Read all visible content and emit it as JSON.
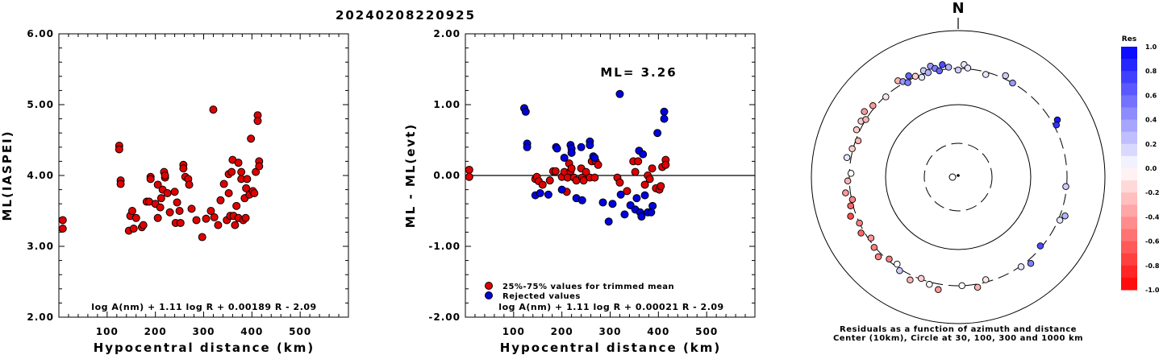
{
  "page_title": "20240208220925",
  "chart_data": [
    {
      "type": "scatter",
      "id": "left",
      "ylabel": "ML(IASPEI)",
      "xlabel": "Hypocentral distance (km)",
      "xlim": [
        0,
        600
      ],
      "ylim": [
        2.0,
        6.0
      ],
      "xticks": [
        "100",
        "200",
        "300",
        "400",
        "500"
      ],
      "yticks": [
        "2.00",
        "3.00",
        "4.00",
        "5.00",
        "6.00"
      ],
      "formula": "log A(nm) + 1.11 log R + 0.00189 R - 2.09",
      "point_color": "#e00000",
      "points": [
        [
          8,
          3.37
        ],
        [
          8,
          3.25
        ],
        [
          125,
          4.42
        ],
        [
          125,
          4.37
        ],
        [
          128,
          3.93
        ],
        [
          128,
          3.88
        ],
        [
          145,
          3.22
        ],
        [
          148,
          3.43
        ],
        [
          152,
          3.5
        ],
        [
          155,
          3.25
        ],
        [
          160,
          3.4
        ],
        [
          172,
          3.27
        ],
        [
          175,
          3.3
        ],
        [
          182,
          3.63
        ],
        [
          187,
          3.63
        ],
        [
          190,
          3.98
        ],
        [
          190,
          3.95
        ],
        [
          200,
          3.6
        ],
        [
          205,
          3.87
        ],
        [
          205,
          3.4
        ],
        [
          210,
          3.55
        ],
        [
          212,
          3.68
        ],
        [
          215,
          3.8
        ],
        [
          218,
          4.05
        ],
        [
          220,
          3.97
        ],
        [
          220,
          4.0
        ],
        [
          225,
          3.75
        ],
        [
          230,
          3.48
        ],
        [
          240,
          3.77
        ],
        [
          242,
          3.33
        ],
        [
          245,
          3.62
        ],
        [
          250,
          3.5
        ],
        [
          252,
          3.33
        ],
        [
          258,
          4.15
        ],
        [
          258,
          4.1
        ],
        [
          262,
          3.98
        ],
        [
          268,
          3.95
        ],
        [
          270,
          3.87
        ],
        [
          275,
          3.53
        ],
        [
          285,
          3.37
        ],
        [
          297,
          3.13
        ],
        [
          305,
          3.39
        ],
        [
          315,
          3.5
        ],
        [
          320,
          4.93
        ],
        [
          322,
          3.41
        ],
        [
          330,
          3.3
        ],
        [
          335,
          3.65
        ],
        [
          342,
          3.88
        ],
        [
          348,
          3.37
        ],
        [
          352,
          4.02
        ],
        [
          352,
          3.75
        ],
        [
          355,
          3.43
        ],
        [
          358,
          4.05
        ],
        [
          360,
          4.22
        ],
        [
          362,
          3.43
        ],
        [
          365,
          3.3
        ],
        [
          368,
          3.57
        ],
        [
          372,
          3.4
        ],
        [
          372,
          4.18
        ],
        [
          378,
          4.05
        ],
        [
          378,
          3.95
        ],
        [
          382,
          3.37
        ],
        [
          385,
          3.68
        ],
        [
          387,
          3.4
        ],
        [
          388,
          3.82
        ],
        [
          390,
          3.95
        ],
        [
          395,
          3.73
        ],
        [
          398,
          4.52
        ],
        [
          402,
          3.78
        ],
        [
          405,
          3.75
        ],
        [
          408,
          4.05
        ],
        [
          412,
          4.85
        ],
        [
          412,
          4.77
        ],
        [
          415,
          4.2
        ],
        [
          415,
          4.13
        ]
      ]
    },
    {
      "type": "scatter",
      "id": "middle",
      "ylabel": "ML - ML(evt)",
      "xlabel": "Hypocentral distance (km)",
      "xlim": [
        0,
        600
      ],
      "ylim": [
        -2.0,
        2.0
      ],
      "xticks": [
        "100",
        "200",
        "300",
        "400",
        "500"
      ],
      "yticks": [
        "-2.00",
        "-1.00",
        "0.00",
        "1.00",
        "2.00"
      ],
      "annotation": "ML= 3.26",
      "formula": "log A(nm) + 1.11 log R + 0.00021 R - 2.09",
      "legend": [
        {
          "label": "25%-75% values for trimmed mean",
          "color": "#e00000"
        },
        {
          "label": "Rejected values",
          "color": "#0000e0"
        }
      ],
      "accepted": [
        [
          8,
          0.08
        ],
        [
          8,
          -0.02
        ],
        [
          145,
          -0.05
        ],
        [
          148,
          -0.02
        ],
        [
          152,
          -0.08
        ],
        [
          160,
          -0.13
        ],
        [
          175,
          -0.07
        ],
        [
          182,
          0.06
        ],
        [
          187,
          0.06
        ],
        [
          200,
          -0.02
        ],
        [
          205,
          0.05
        ],
        [
          210,
          -0.23
        ],
        [
          212,
          -0.03
        ],
        [
          215,
          0.17
        ],
        [
          218,
          0.06
        ],
        [
          220,
          0.1
        ],
        [
          225,
          -0.03
        ],
        [
          230,
          -0.07
        ],
        [
          240,
          0.1
        ],
        [
          242,
          -0.03
        ],
        [
          245,
          -0.07
        ],
        [
          250,
          0.05
        ],
        [
          258,
          -0.03
        ],
        [
          262,
          0.2
        ],
        [
          268,
          -0.03
        ],
        [
          270,
          0.2
        ],
        [
          275,
          0.15
        ],
        [
          315,
          -0.03
        ],
        [
          320,
          -0.1
        ],
        [
          335,
          -0.22
        ],
        [
          348,
          0.2
        ],
        [
          352,
          0.05
        ],
        [
          358,
          0.2
        ],
        [
          372,
          -0.13
        ],
        [
          378,
          0.0
        ],
        [
          382,
          -0.05
        ],
        [
          387,
          0.1
        ],
        [
          395,
          -0.18
        ],
        [
          402,
          -0.2
        ],
        [
          405,
          -0.15
        ],
        [
          408,
          0.12
        ],
        [
          415,
          0.22
        ],
        [
          415,
          0.15
        ]
      ],
      "rejected": [
        [
          122,
          0.95
        ],
        [
          125,
          0.9
        ],
        [
          128,
          0.45
        ],
        [
          128,
          0.4
        ],
        [
          145,
          -0.28
        ],
        [
          155,
          -0.25
        ],
        [
          172,
          -0.27
        ],
        [
          188,
          0.4
        ],
        [
          190,
          0.38
        ],
        [
          200,
          -0.2
        ],
        [
          205,
          0.25
        ],
        [
          218,
          0.43
        ],
        [
          220,
          0.38
        ],
        [
          220,
          0.32
        ],
        [
          230,
          -0.32
        ],
        [
          240,
          0.4
        ],
        [
          242,
          -0.35
        ],
        [
          258,
          0.48
        ],
        [
          258,
          0.43
        ],
        [
          265,
          0.27
        ],
        [
          268,
          0.25
        ],
        [
          285,
          -0.38
        ],
        [
          297,
          -0.65
        ],
        [
          305,
          -0.4
        ],
        [
          320,
          1.15
        ],
        [
          322,
          -0.27
        ],
        [
          330,
          -0.55
        ],
        [
          342,
          -0.42
        ],
        [
          352,
          -0.48
        ],
        [
          355,
          -0.32
        ],
        [
          360,
          0.35
        ],
        [
          362,
          -0.52
        ],
        [
          365,
          -0.58
        ],
        [
          368,
          0.3
        ],
        [
          372,
          -0.28
        ],
        [
          378,
          -0.52
        ],
        [
          385,
          -0.52
        ],
        [
          388,
          -0.43
        ],
        [
          398,
          0.6
        ],
        [
          412,
          0.9
        ],
        [
          412,
          0.8
        ]
      ]
    },
    {
      "type": "polar-scatter",
      "id": "right",
      "north_label": "N",
      "caption_line1": "Residuals as a function of azimuth and distance",
      "caption_line2": "Center (10km), Circle at 30, 100, 300 and 1000 km",
      "colorbar_title": "Res",
      "colorbar_labels": [
        "1.0",
        "0.8",
        "0.6",
        "0.4",
        "0.2",
        "0.0",
        "-0.2",
        "-0.4",
        "-0.6",
        "-0.8",
        "-1.0"
      ],
      "rings_km": [
        30,
        100,
        300,
        1000
      ],
      "center_km": 10,
      "points_az_res": [
        [
          215,
          0.0
        ],
        [
          300,
          -0.2
        ],
        [
          302,
          -0.3
        ],
        [
          305,
          -0.4
        ],
        [
          310,
          -0.4
        ],
        [
          318,
          -0.1
        ],
        [
          328,
          -0.3
        ],
        [
          330,
          0.4
        ],
        [
          332,
          0.5
        ],
        [
          334,
          0.6
        ],
        [
          337,
          -0.2
        ],
        [
          340,
          0.1
        ],
        [
          342,
          0.2
        ],
        [
          344,
          0.3
        ],
        [
          346,
          0.4
        ],
        [
          348,
          0.5
        ],
        [
          350,
          0.6
        ],
        [
          352,
          0.7
        ],
        [
          355,
          0.3
        ],
        [
          0,
          0.2
        ],
        [
          3,
          0.1
        ],
        [
          5,
          0.1
        ],
        [
          15,
          0.1
        ],
        [
          25,
          0.2
        ],
        [
          30,
          0.4
        ],
        [
          60,
          0.9
        ],
        [
          62,
          0.8
        ],
        [
          95,
          0.2
        ],
        [
          110,
          0.3
        ],
        [
          113,
          0.1
        ],
        [
          130,
          0.7
        ],
        [
          140,
          0.5
        ],
        [
          145,
          0.1
        ],
        [
          165,
          -0.1
        ],
        [
          170,
          -0.3
        ],
        [
          178,
          0.0
        ],
        [
          190,
          -0.4
        ],
        [
          195,
          0.0
        ],
        [
          200,
          -0.2
        ],
        [
          205,
          -0.3
        ],
        [
          212,
          0.2
        ],
        [
          220,
          -0.5
        ],
        [
          225,
          -0.5
        ],
        [
          230,
          -0.5
        ],
        [
          235,
          -0.4
        ],
        [
          240,
          -0.6
        ],
        [
          245,
          -0.5
        ],
        [
          250,
          -0.7
        ],
        [
          255,
          -0.6
        ],
        [
          258,
          -0.5
        ],
        [
          262,
          -0.4
        ],
        [
          268,
          -0.3
        ],
        [
          272,
          0.0
        ],
        [
          280,
          0.1
        ],
        [
          285,
          -0.2
        ],
        [
          290,
          -0.3
        ],
        [
          295,
          -0.2
        ]
      ]
    }
  ]
}
